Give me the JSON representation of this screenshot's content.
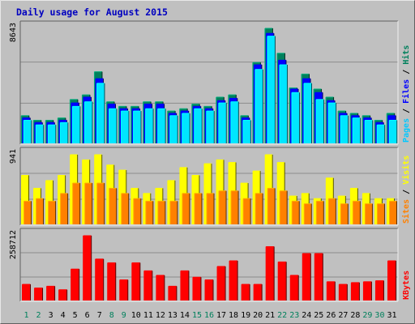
{
  "chart_data": [
    {
      "type": "bar",
      "title": "Daily usage for August 2015",
      "categories": [
        "1",
        "2",
        "3",
        "4",
        "5",
        "6",
        "7",
        "8",
        "9",
        "10",
        "11",
        "12",
        "13",
        "14",
        "15",
        "16",
        "17",
        "18",
        "19",
        "20",
        "21",
        "22",
        "23",
        "24",
        "25",
        "26",
        "27",
        "28",
        "29",
        "30",
        "31"
      ],
      "weekend_days": [
        "1",
        "2",
        "8",
        "9",
        "15",
        "16",
        "22",
        "23",
        "29",
        "30"
      ],
      "ytick": "8643",
      "legend": [
        "Pages",
        "Files",
        "Hits"
      ],
      "series": [
        {
          "name": "Hits",
          "color": "#00805c",
          "values": [
            2083,
            1736,
            1736,
            1910,
            3298,
            3646,
            5382,
            3125,
            2778,
            2778,
            3125,
            3125,
            2431,
            2604,
            2951,
            2778,
            3472,
            3646,
            2083,
            6076,
            8643,
            6771,
            4167,
            5208,
            4080,
            3472,
            2431,
            2256,
            2083,
            1736,
            2256
          ]
        },
        {
          "name": "Files",
          "color": "#0000ff",
          "values": [
            1910,
            1563,
            1563,
            1736,
            3038,
            3472,
            4861,
            2951,
            2604,
            2604,
            2951,
            2951,
            2256,
            2431,
            2778,
            2604,
            3212,
            3385,
            1910,
            5903,
            8264,
            6250,
            4080,
            4861,
            3819,
            3212,
            2256,
            2083,
            1910,
            1563,
            2083
          ]
        },
        {
          "name": "Pages",
          "color": "#00e6ff",
          "values": [
            1736,
            1389,
            1389,
            1563,
            2778,
            3125,
            4514,
            2604,
            2431,
            2431,
            2604,
            2604,
            2083,
            2256,
            2604,
            2431,
            3038,
            3125,
            1736,
            5556,
            8056,
            5903,
            3819,
            4514,
            3298,
            3038,
            2083,
            1910,
            1736,
            1389,
            1736
          ]
        }
      ]
    },
    {
      "type": "bar",
      "categories": [
        "1",
        "2",
        "3",
        "4",
        "5",
        "6",
        "7",
        "8",
        "9",
        "10",
        "11",
        "12",
        "13",
        "14",
        "15",
        "16",
        "17",
        "18",
        "19",
        "20",
        "21",
        "22",
        "23",
        "24",
        "25",
        "26",
        "27",
        "28",
        "29",
        "30",
        "31"
      ],
      "ytick": "941",
      "legend": [
        "Sites",
        "Visits"
      ],
      "series": [
        {
          "name": "Visits",
          "color": "#ffff00",
          "values": [
            638,
            470,
            571,
            638,
            907,
            840,
            907,
            773,
            706,
            470,
            403,
            470,
            571,
            740,
            638,
            790,
            840,
            806,
            537,
            695,
            907,
            806,
            369,
            403,
            336,
            604,
            369,
            470,
            403,
            336,
            336
          ]
        },
        {
          "name": "Sites",
          "color": "#ff8000",
          "values": [
            302,
            336,
            302,
            403,
            537,
            537,
            537,
            470,
            403,
            336,
            302,
            302,
            302,
            403,
            403,
            403,
            436,
            436,
            336,
            403,
            470,
            436,
            302,
            268,
            302,
            336,
            268,
            302,
            268,
            268,
            302
          ]
        }
      ]
    },
    {
      "type": "bar",
      "categories": [
        "1",
        "2",
        "3",
        "4",
        "5",
        "6",
        "7",
        "8",
        "9",
        "10",
        "11",
        "12",
        "13",
        "14",
        "15",
        "16",
        "17",
        "18",
        "19",
        "20",
        "21",
        "22",
        "23",
        "24",
        "25",
        "26",
        "27",
        "28",
        "29",
        "30",
        "31"
      ],
      "ytick": "258712",
      "legend": [
        "KBytes"
      ],
      "series": [
        {
          "name": "KBytes",
          "color": "#ff0000",
          "values": [
            64500,
            50000,
            57000,
            43000,
            125500,
            258712,
            165500,
            150500,
            82500,
            150500,
            118500,
            100500,
            57000,
            118500,
            93000,
            82500,
            136000,
            158500,
            64500,
            64500,
            215000,
            154000,
            100500,
            187500,
            187500,
            75000,
            64500,
            71500,
            75000,
            79000,
            158500
          ]
        }
      ]
    }
  ]
}
